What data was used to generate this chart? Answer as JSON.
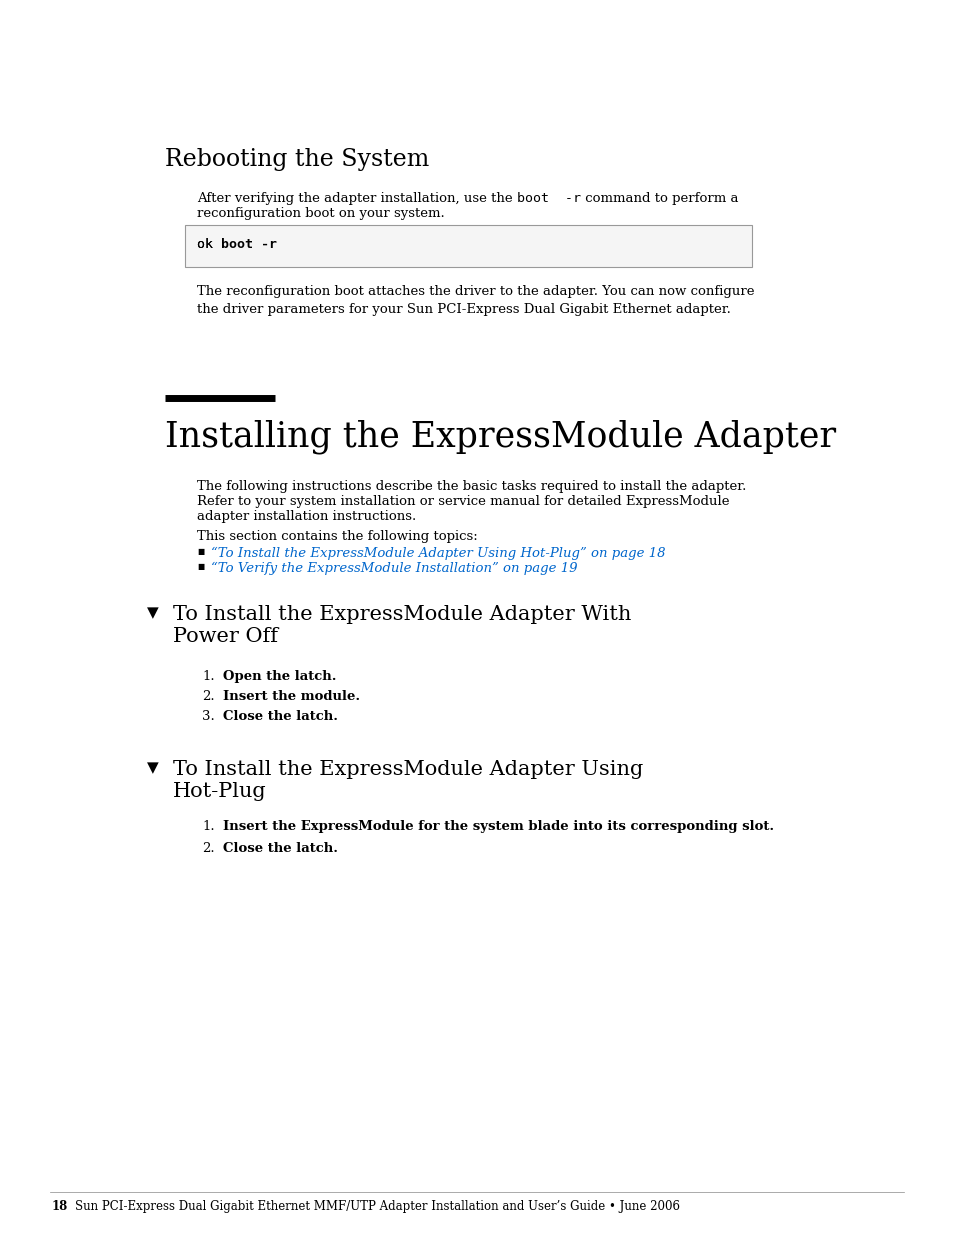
{
  "page_bg": "#ffffff",
  "text_color": "#000000",
  "link_color": "#0066cc",
  "section1_title": "Rebooting the System",
  "body1_part1": "After verifying the adapter installation, use the ",
  "body1_code": "boot  -r",
  "body1_part2": " command to perform a",
  "body1_line2": "reconfiguration boot on your system.",
  "code_normal": "ok ",
  "code_bold": "boot -r",
  "body2": "The reconfiguration boot attaches the driver to the adapter. You can now configure\nthe driver parameters for your Sun PCI-Express Dual Gigabit Ethernet adapter.",
  "section2_title": "Installing the ExpressModule Adapter",
  "section2_body1_l1": "The following instructions describe the basic tasks required to install the adapter.",
  "section2_body1_l2": "Refer to your system installation or service manual for detailed ExpressModule",
  "section2_body1_l3": "adapter installation instructions.",
  "section2_body2": "This section contains the following topics:",
  "link1": "“To Install the ExpressModule Adapter Using Hot-Plug” on page 18",
  "link2": "“To Verify the ExpressModule Installation” on page 19",
  "sub1_line1": "To Install the ExpressModule Adapter With",
  "sub1_line2": "Power Off",
  "steps1": [
    {
      "num": "1.",
      "text": "Open the latch."
    },
    {
      "num": "2.",
      "text": "Insert the module."
    },
    {
      "num": "3.",
      "text": "Close the latch."
    }
  ],
  "sub2_line1": "To Install the ExpressModule Adapter Using",
  "sub2_line2": "Hot-Plug",
  "steps2": [
    {
      "num": "1.",
      "text": "Insert the ExpressModule for the system blade into its corresponding slot."
    },
    {
      "num": "2.",
      "text": "Close the latch."
    }
  ],
  "footer_num": "18",
  "footer_text": "Sun PCI-Express Dual Gigabit Ethernet MMF/UTP Adapter Installation and User’s Guide • June 2006"
}
